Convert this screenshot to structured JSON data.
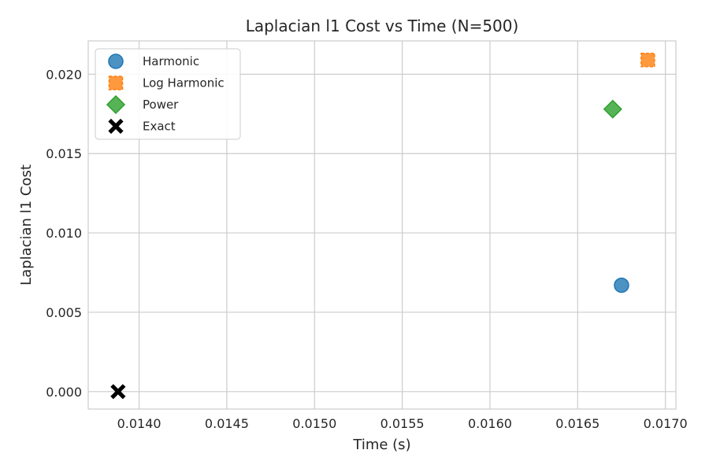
{
  "chart_data": {
    "type": "scatter",
    "title": "Laplacian l1 Cost vs Time (N=500)",
    "xlabel": "Time (s)",
    "ylabel": "Laplacian l1 Cost",
    "xlim": [
      0.01371,
      0.01706
    ],
    "ylim": [
      -0.0011,
      0.0221
    ],
    "xticks": [
      0.014,
      0.0145,
      0.015,
      0.0155,
      0.016,
      0.0165,
      0.017
    ],
    "xtick_labels": [
      "0.0140",
      "0.0145",
      "0.0150",
      "0.0155",
      "0.0160",
      "0.0165",
      "0.0170"
    ],
    "yticks": [
      0.0,
      0.005,
      0.01,
      0.015,
      0.02
    ],
    "ytick_labels": [
      "0.000",
      "0.005",
      "0.010",
      "0.015",
      "0.020"
    ],
    "grid": true,
    "legend_position": "top-left",
    "series": [
      {
        "name": "Harmonic",
        "marker": "circle",
        "color": "#1f77b4",
        "x": [
          0.01675
        ],
        "y": [
          0.0067
        ]
      },
      {
        "name": "Log Harmonic",
        "marker": "square",
        "color": "#ff7f0e",
        "x": [
          0.0169
        ],
        "y": [
          0.0209
        ]
      },
      {
        "name": "Power",
        "marker": "diamond",
        "color": "#2ca02c",
        "x": [
          0.0167
        ],
        "y": [
          0.0178
        ]
      },
      {
        "name": "Exact",
        "marker": "x",
        "color": "#000000",
        "x": [
          0.01388
        ],
        "y": [
          0.0
        ]
      }
    ]
  }
}
